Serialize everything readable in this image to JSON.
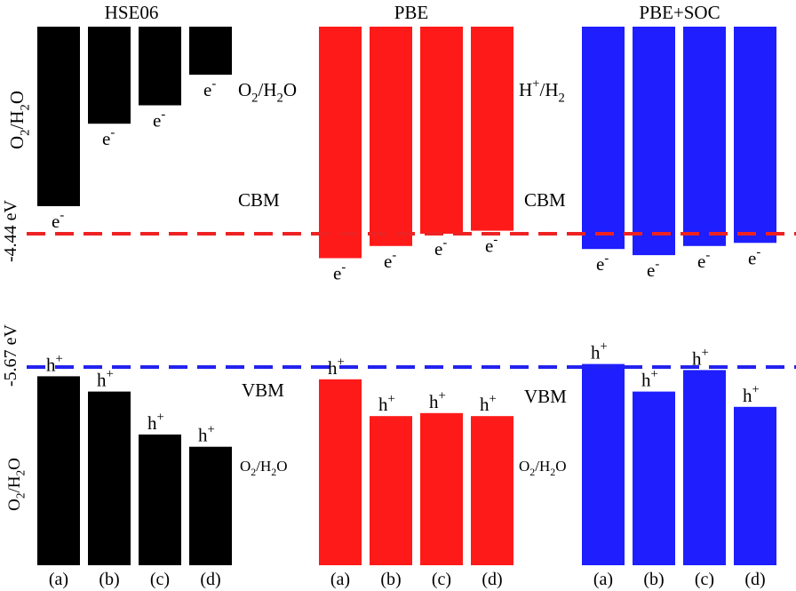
{
  "chart_data": {
    "type": "bar",
    "titles": [
      "HSE06",
      "PBE",
      "PBE+SOC"
    ],
    "categories": [
      "(a)",
      "(b)",
      "(c)",
      "(d)"
    ],
    "energy_unit": "eV",
    "cbm_value": -4.44,
    "vbm_value": -5.67,
    "cbm_label": "-4.44 eV",
    "vbm_label": "-5.67 eV",
    "groups": [
      {
        "name": "HSE06",
        "color": "#000000",
        "cbm": [
          -4.35,
          -4.08,
          -4.02,
          -3.92
        ],
        "vbm": [
          -5.7,
          -5.75,
          -5.89,
          -5.93
        ]
      },
      {
        "name": "PBE",
        "color": "#ff1a1a",
        "cbm": [
          -4.52,
          -4.48,
          -4.44,
          -4.43
        ],
        "vbm": [
          -5.71,
          -5.83,
          -5.82,
          -5.83
        ]
      },
      {
        "name": "PBE+SOC",
        "color": "#1e1eff",
        "cbm": [
          -4.49,
          -4.51,
          -4.48,
          -4.47
        ],
        "vbm": [
          -5.66,
          -5.75,
          -5.68,
          -5.8
        ]
      }
    ],
    "annotations": {
      "o2_h2o": "O2/H2O",
      "h_h2": "H+/H2",
      "cbm": "CBM",
      "vbm": "VBM",
      "electron": "e-",
      "hole": "h+"
    }
  }
}
